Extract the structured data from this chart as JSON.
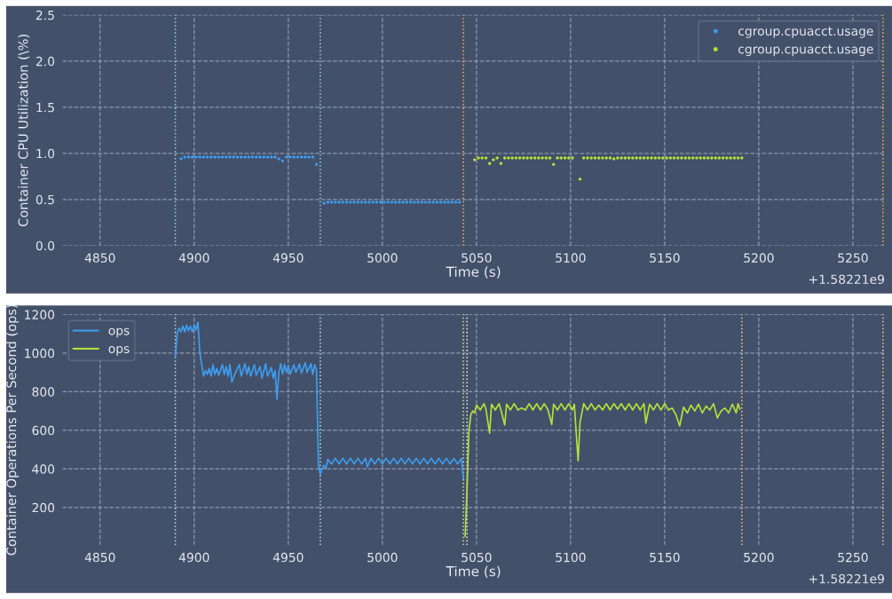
{
  "chart_data": [
    {
      "type": "scatter",
      "xlabel": "Time (s)",
      "ylabel": "Container CPU Utilization (\\%)",
      "xlim": [
        4830,
        5267
      ],
      "xticks": [
        4850,
        4900,
        4950,
        5000,
        5050,
        5100,
        5150,
        5200,
        5250
      ],
      "ylim": [
        0,
        2.5
      ],
      "yticks": [
        {
          "value": 0,
          "label": "0.0"
        },
        0.5,
        {
          "value": 1,
          "label": "1.0"
        },
        1.5,
        {
          "value": 2,
          "label": "2.0"
        },
        2.5
      ],
      "grid": true,
      "legend": "top right",
      "marker": "circle",
      "annotations": [
        "+1.58221e9"
      ],
      "ref_lines": [
        {
          "axis": "x",
          "value": 4890,
          "color": "#7fd8e0",
          "line_style": "dotted"
        },
        {
          "axis": "x",
          "value": 4967,
          "color": "#7fd8e0",
          "line_style": "dotted"
        },
        {
          "axis": "x",
          "value": 5043,
          "color": "#f0b050",
          "line_style": "dotted"
        },
        {
          "axis": "x",
          "value": 5266,
          "color": "#f0b050",
          "line_style": "dotted"
        }
      ],
      "series": [
        {
          "name": "cgroup.cpuacct.usage",
          "color": "#3d9df0",
          "x": [
            4893,
            4895,
            4897,
            4899,
            4901,
            4903,
            4905,
            4907,
            4909,
            4911,
            4913,
            4915,
            4917,
            4919,
            4921,
            4923,
            4925,
            4927,
            4929,
            4931,
            4933,
            4935,
            4937,
            4939,
            4941,
            4943,
            4945,
            4947,
            4949,
            4951,
            4953,
            4955,
            4957,
            4959,
            4961,
            4963,
            4965,
            4969,
            4971,
            4973,
            4975,
            4977,
            4979,
            4981,
            4983,
            4985,
            4987,
            4989,
            4991,
            4993,
            4995,
            4997,
            4999,
            5001,
            5003,
            5005,
            5007,
            5009,
            5011,
            5013,
            5015,
            5017,
            5019,
            5021,
            5023,
            5025,
            5027,
            5029,
            5031,
            5033,
            5035,
            5037,
            5039,
            5041
          ],
          "values": [
            0.94,
            0.96,
            0.96,
            0.96,
            0.96,
            0.96,
            0.96,
            0.96,
            0.96,
            0.96,
            0.96,
            0.96,
            0.96,
            0.96,
            0.96,
            0.96,
            0.96,
            0.96,
            0.96,
            0.96,
            0.96,
            0.96,
            0.96,
            0.96,
            0.96,
            0.96,
            0.94,
            0.92,
            0.96,
            0.96,
            0.96,
            0.96,
            0.96,
            0.96,
            0.96,
            0.96,
            0.88,
            0.46,
            0.47,
            0.47,
            0.47,
            0.47,
            0.47,
            0.47,
            0.47,
            0.47,
            0.47,
            0.47,
            0.47,
            0.47,
            0.47,
            0.47,
            0.47,
            0.47,
            0.47,
            0.47,
            0.47,
            0.47,
            0.47,
            0.47,
            0.47,
            0.47,
            0.47,
            0.47,
            0.47,
            0.47,
            0.47,
            0.47,
            0.47,
            0.47,
            0.47,
            0.47,
            0.47,
            0.47
          ]
        },
        {
          "name": "cgroup.cpuacct.usage",
          "color": "#b8e03a",
          "x": [
            5049,
            5051,
            5053,
            5055,
            5057,
            5059,
            5061,
            5063,
            5065,
            5067,
            5069,
            5071,
            5073,
            5075,
            5077,
            5079,
            5081,
            5083,
            5085,
            5087,
            5089,
            5091,
            5093,
            5095,
            5097,
            5099,
            5101,
            5105,
            5107,
            5109,
            5111,
            5113,
            5115,
            5117,
            5119,
            5121,
            5123,
            5125,
            5127,
            5129,
            5131,
            5133,
            5135,
            5137,
            5139,
            5141,
            5143,
            5145,
            5147,
            5149,
            5151,
            5153,
            5155,
            5157,
            5159,
            5161,
            5163,
            5165,
            5167,
            5169,
            5171,
            5173,
            5175,
            5177,
            5179,
            5181,
            5183,
            5185,
            5187,
            5189,
            5191
          ],
          "values": [
            0.93,
            0.95,
            0.95,
            0.95,
            0.89,
            0.93,
            0.95,
            0.89,
            0.95,
            0.95,
            0.95,
            0.95,
            0.95,
            0.95,
            0.95,
            0.95,
            0.95,
            0.95,
            0.95,
            0.95,
            0.95,
            0.88,
            0.95,
            0.95,
            0.95,
            0.95,
            0.95,
            0.72,
            0.95,
            0.95,
            0.95,
            0.95,
            0.95,
            0.95,
            0.95,
            0.95,
            0.94,
            0.95,
            0.95,
            0.95,
            0.95,
            0.95,
            0.95,
            0.95,
            0.95,
            0.95,
            0.95,
            0.95,
            0.95,
            0.95,
            0.95,
            0.95,
            0.95,
            0.95,
            0.95,
            0.95,
            0.95,
            0.95,
            0.95,
            0.95,
            0.95,
            0.95,
            0.95,
            0.95,
            0.95,
            0.95,
            0.95,
            0.95,
            0.95,
            0.95,
            0.95
          ]
        }
      ]
    },
    {
      "type": "line",
      "xlabel": "Time (s)",
      "ylabel": "Container Operations Per Second (ops)",
      "xlim": [
        4830,
        5267
      ],
      "xticks": [
        4850,
        4900,
        4950,
        5000,
        5050,
        5100,
        5150,
        5200,
        5250
      ],
      "ylim": [
        5,
        1200
      ],
      "yticks": [
        200,
        400,
        600,
        800,
        1000,
        1200
      ],
      "grid": true,
      "legend": "top left",
      "line_style": "solid",
      "annotations": [
        "+1.58221e9"
      ],
      "ref_lines": [
        {
          "axis": "x",
          "value": 4890,
          "color": "#a8e4ea",
          "line_style": "dotted"
        },
        {
          "axis": "x",
          "value": 4967,
          "color": "#a8e4ea",
          "line_style": "dotted"
        },
        {
          "axis": "x",
          "value": 5043,
          "color": "#e8dca0",
          "line_style": "dotted"
        },
        {
          "axis": "x",
          "value": 5045,
          "color": "#e8e8e8",
          "line_style": "dotted"
        },
        {
          "axis": "x",
          "value": 5191,
          "color": "#f0c890",
          "line_style": "dotted"
        },
        {
          "axis": "x",
          "value": 5266,
          "color": "#f0c890",
          "line_style": "dotted"
        }
      ],
      "series": [
        {
          "name": "ops",
          "color": "#3d9df0",
          "x": [
            4890,
            4891,
            4892,
            4893,
            4894,
            4895,
            4896,
            4897,
            4898,
            4899,
            4900,
            4901,
            4902,
            4903,
            4904,
            4905,
            4906,
            4907,
            4908,
            4909,
            4910,
            4911,
            4912,
            4913,
            4915,
            4916,
            4917,
            4918,
            4919,
            4920,
            4922,
            4924,
            4925,
            4927,
            4928,
            4929,
            4930,
            4932,
            4933,
            4935,
            4936,
            4938,
            4939,
            4941,
            4942,
            4943,
            4944,
            4945,
            4946,
            4947,
            4948,
            4949,
            4950,
            4951,
            4953,
            4954,
            4956,
            4957,
            4959,
            4960,
            4962,
            4963,
            4964,
            4965,
            4966,
            4967,
            4968,
            4969,
            4970,
            4971,
            4973,
            4975,
            4977,
            4979,
            4981,
            4983,
            4985,
            4987,
            4989,
            4991,
            4992,
            4994,
            4996,
            4998,
            5000,
            5002,
            5004,
            5006,
            5008,
            5010,
            5012,
            5014,
            5016,
            5018,
            5020,
            5022,
            5024,
            5026,
            5028,
            5030,
            5032,
            5034,
            5036,
            5038,
            5040,
            5042,
            5043
          ],
          "values": [
            980,
            1100,
            1130,
            1110,
            1140,
            1110,
            1145,
            1115,
            1140,
            1110,
            1145,
            1120,
            1160,
            1000,
            940,
            880,
            910,
            890,
            920,
            880,
            940,
            890,
            920,
            885,
            940,
            890,
            930,
            880,
            940,
            850,
            900,
            940,
            880,
            945,
            890,
            930,
            880,
            940,
            885,
            930,
            870,
            945,
            880,
            925,
            870,
            910,
            760,
            900,
            945,
            890,
            940,
            900,
            935,
            890,
            940,
            900,
            945,
            895,
            950,
            900,
            945,
            890,
            940,
            910,
            420,
            370,
            400,
            420,
            400,
            450,
            425,
            455,
            425,
            455,
            425,
            455,
            425,
            455,
            425,
            455,
            410,
            455,
            425,
            455,
            425,
            455,
            425,
            455,
            425,
            455,
            425,
            455,
            425,
            455,
            425,
            455,
            425,
            455,
            425,
            455,
            425,
            455,
            425,
            455,
            425,
            455,
            350
          ]
        },
        {
          "name": "ops",
          "color": "#b8e03a",
          "x": [
            5044,
            5045,
            5046,
            5047,
            5048,
            5049,
            5050,
            5052,
            5054,
            5055,
            5057,
            5058,
            5060,
            5062,
            5063,
            5065,
            5066,
            5068,
            5070,
            5072,
            5074,
            5076,
            5078,
            5080,
            5082,
            5084,
            5086,
            5088,
            5090,
            5091,
            5093,
            5095,
            5097,
            5099,
            5101,
            5102,
            5104,
            5105,
            5107,
            5109,
            5111,
            5113,
            5115,
            5117,
            5119,
            5121,
            5123,
            5125,
            5127,
            5129,
            5131,
            5133,
            5135,
            5137,
            5139,
            5140,
            5142,
            5144,
            5146,
            5148,
            5150,
            5152,
            5154,
            5156,
            5158,
            5160,
            5162,
            5164,
            5166,
            5168,
            5170,
            5172,
            5174,
            5176,
            5178,
            5180,
            5182,
            5184,
            5186,
            5188,
            5189,
            5190
          ],
          "values": [
            50,
            300,
            600,
            680,
            700,
            690,
            730,
            705,
            738,
            710,
            585,
            735,
            705,
            738,
            705,
            627,
            735,
            705,
            738,
            705,
            715,
            705,
            738,
            705,
            738,
            705,
            738,
            705,
            630,
            735,
            705,
            738,
            705,
            738,
            705,
            735,
            441,
            640,
            738,
            705,
            738,
            705,
            730,
            705,
            738,
            705,
            738,
            710,
            738,
            705,
            738,
            705,
            738,
            705,
            738,
            637,
            735,
            705,
            738,
            705,
            738,
            705,
            715,
            680,
            622,
            720,
            690,
            730,
            700,
            735,
            690,
            725,
            705,
            738,
            664,
            700,
            715,
            690,
            735,
            690,
            738,
            710
          ]
        }
      ]
    }
  ]
}
